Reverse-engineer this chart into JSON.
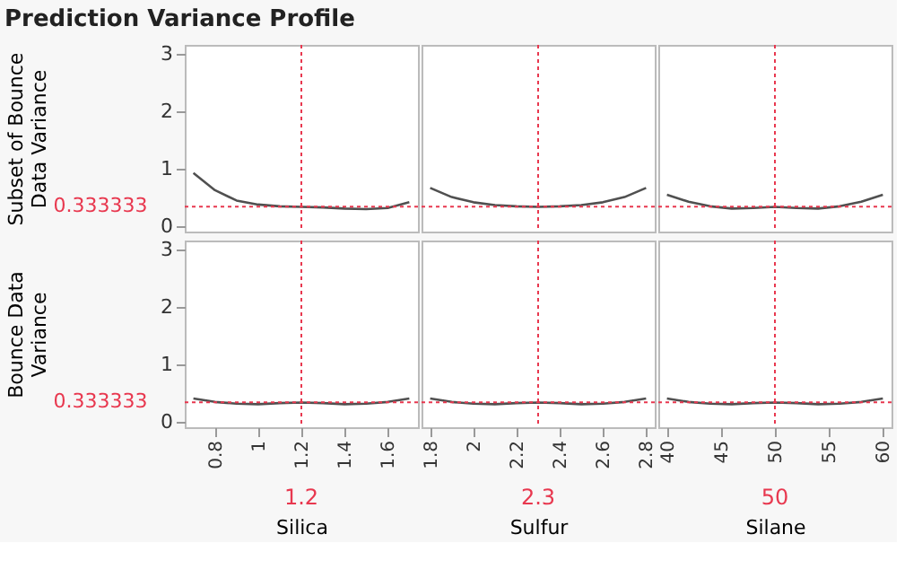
{
  "chart_data": [
    {
      "type": "line",
      "title": "Prediction Variance Profile",
      "ylabel": "Subset of Bounce Data Variance",
      "tick_labels": "y",
      "x": [
        0.7,
        0.8,
        0.9,
        1.0,
        1.1,
        1.2,
        1.3,
        1.4,
        1.5,
        1.6,
        1.7
      ],
      "series": [
        {
          "color": "#505050",
          "values": [
            0.92,
            0.62,
            0.44,
            0.37,
            0.34,
            0.33,
            0.32,
            0.3,
            0.29,
            0.31,
            0.41
          ]
        }
      ],
      "xlim": [
        0.66,
        1.74
      ],
      "ylim": [
        -0.1,
        3.15
      ],
      "yticks": [
        0,
        1,
        2,
        3
      ],
      "ref_lines": [
        {
          "axis": "x",
          "value": 1.2,
          "color": "#e8384f",
          "line_style": "dotted"
        },
        {
          "axis": "y",
          "value": 0.333333,
          "label": "0.333333",
          "color": "#e8384f",
          "line_style": "dotted"
        }
      ]
    },
    {
      "type": "line",
      "tick_labels": false,
      "x": [
        1.8,
        1.9,
        2.0,
        2.1,
        2.2,
        2.3,
        2.4,
        2.5,
        2.6,
        2.7,
        2.8
      ],
      "series": [
        {
          "color": "#505050",
          "values": [
            0.66,
            0.5,
            0.41,
            0.36,
            0.34,
            0.33,
            0.34,
            0.36,
            0.41,
            0.5,
            0.66
          ]
        }
      ],
      "xlim": [
        1.76,
        2.84
      ],
      "ylim": [
        -0.1,
        3.15
      ],
      "ref_lines": [
        {
          "axis": "x",
          "value": 2.3,
          "color": "#e8384f",
          "line_style": "dotted"
        },
        {
          "axis": "y",
          "value": 0.333333,
          "color": "#e8384f",
          "line_style": "dotted"
        }
      ]
    },
    {
      "type": "line",
      "tick_labels": false,
      "x": [
        40,
        42,
        44,
        46,
        48,
        50,
        52,
        54,
        56,
        58,
        60
      ],
      "series": [
        {
          "color": "#505050",
          "values": [
            0.54,
            0.42,
            0.34,
            0.3,
            0.31,
            0.33,
            0.31,
            0.3,
            0.34,
            0.42,
            0.54
          ]
        }
      ],
      "xlim": [
        39.2,
        60.8
      ],
      "ylim": [
        -0.1,
        3.15
      ],
      "ref_lines": [
        {
          "axis": "x",
          "value": 50,
          "color": "#e8384f",
          "line_style": "dotted"
        },
        {
          "axis": "y",
          "value": 0.333333,
          "color": "#e8384f",
          "line_style": "dotted"
        }
      ]
    },
    {
      "type": "line",
      "ylabel": "Bounce Data Variance",
      "xlabel": "Silica",
      "x": [
        0.7,
        0.8,
        0.9,
        1.0,
        1.1,
        1.2,
        1.3,
        1.4,
        1.5,
        1.6,
        1.7
      ],
      "series": [
        {
          "color": "#505050",
          "values": [
            0.4,
            0.34,
            0.31,
            0.3,
            0.32,
            0.33,
            0.32,
            0.3,
            0.31,
            0.34,
            0.4
          ]
        }
      ],
      "xlim": [
        0.66,
        1.74
      ],
      "ylim": [
        -0.1,
        3.15
      ],
      "xticks": [
        0.8,
        1,
        1.2,
        1.4,
        1.6
      ],
      "yticks": [
        0,
        1,
        2,
        3
      ],
      "ref_lines": [
        {
          "axis": "x",
          "value": 1.2,
          "label": "1.2",
          "color": "#e8384f",
          "line_style": "dotted"
        },
        {
          "axis": "y",
          "value": 0.333333,
          "label": "0.333333",
          "color": "#e8384f",
          "line_style": "dotted"
        }
      ]
    },
    {
      "type": "line",
      "xlabel": "Sulfur",
      "tick_labels": "x",
      "x": [
        1.8,
        1.9,
        2.0,
        2.1,
        2.2,
        2.3,
        2.4,
        2.5,
        2.6,
        2.7,
        2.8
      ],
      "series": [
        {
          "color": "#505050",
          "values": [
            0.4,
            0.34,
            0.31,
            0.3,
            0.32,
            0.33,
            0.32,
            0.3,
            0.31,
            0.34,
            0.4
          ]
        }
      ],
      "xlim": [
        1.76,
        2.84
      ],
      "ylim": [
        -0.1,
        3.15
      ],
      "xticks": [
        1.8,
        2,
        2.2,
        2.4,
        2.6,
        2.8
      ],
      "ref_lines": [
        {
          "axis": "x",
          "value": 2.3,
          "label": "2.3",
          "color": "#e8384f",
          "line_style": "dotted"
        },
        {
          "axis": "y",
          "value": 0.333333,
          "color": "#e8384f",
          "line_style": "dotted"
        }
      ]
    },
    {
      "type": "line",
      "xlabel": "Silane",
      "tick_labels": "x",
      "x": [
        40,
        42,
        44,
        46,
        48,
        50,
        52,
        54,
        56,
        58,
        60
      ],
      "series": [
        {
          "color": "#505050",
          "values": [
            0.4,
            0.34,
            0.31,
            0.3,
            0.32,
            0.33,
            0.32,
            0.3,
            0.31,
            0.34,
            0.4
          ]
        }
      ],
      "xlim": [
        39.2,
        60.8
      ],
      "ylim": [
        -0.1,
        3.15
      ],
      "xticks": [
        40,
        45,
        50,
        55,
        60
      ],
      "ref_lines": [
        {
          "axis": "x",
          "value": 50,
          "label": "50",
          "color": "#e8384f",
          "line_style": "dotted"
        },
        {
          "axis": "y",
          "value": 0.333333,
          "color": "#e8384f",
          "line_style": "dotted"
        }
      ]
    }
  ]
}
